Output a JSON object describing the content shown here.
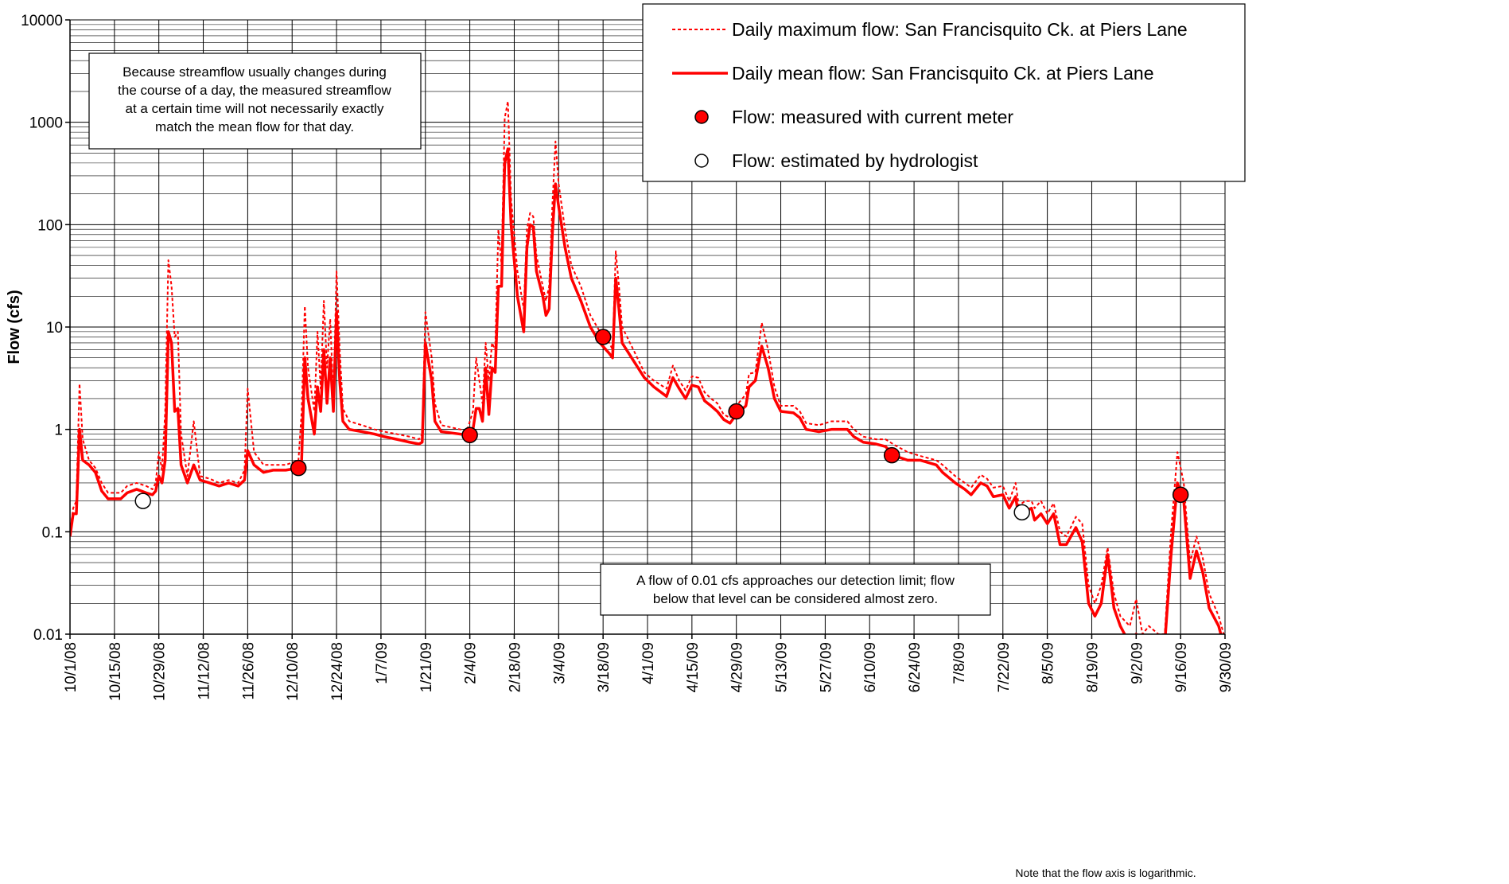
{
  "chart_data": {
    "type": "line",
    "ylabel": "Flow (cfs)",
    "log_y": true,
    "grid": true,
    "legend": "upper right",
    "ylim": [
      0.01,
      10000
    ],
    "yticks": [
      0.01,
      0.1,
      1,
      10,
      100,
      1000,
      10000
    ],
    "xlim": [
      "10/1/08",
      "9/30/09"
    ],
    "xticks": [
      "10/1/08",
      "10/15/08",
      "10/29/08",
      "11/12/08",
      "11/26/08",
      "12/10/08",
      "12/24/08",
      "1/7/09",
      "1/21/09",
      "2/4/09",
      "2/18/09",
      "3/4/09",
      "3/18/09",
      "4/1/09",
      "4/15/09",
      "4/29/09",
      "5/13/09",
      "5/27/09",
      "6/10/09",
      "6/24/09",
      "7/8/09",
      "7/22/09",
      "8/5/09",
      "8/19/09",
      "9/2/09",
      "9/16/09",
      "9/30/09"
    ],
    "x": [
      "10/1/08",
      "10/2/08",
      "10/3/08",
      "10/4/08",
      "10/5/08",
      "10/7/08",
      "10/9/08",
      "10/11/08",
      "10/13/08",
      "10/17/08",
      "10/19/08",
      "10/22/08",
      "10/25/08",
      "10/27/08",
      "10/28/08",
      "10/29/08",
      "10/30/08",
      "10/31/08",
      "11/1/08",
      "11/2/08",
      "11/3/08",
      "11/4/08",
      "11/5/08",
      "11/7/08",
      "11/9/08",
      "11/11/08",
      "11/14/08",
      "11/17/08",
      "11/20/08",
      "11/23/08",
      "11/25/08",
      "11/26/08",
      "11/28/08",
      "12/1/08",
      "12/4/08",
      "12/8/08",
      "12/12/08",
      "12/13/08",
      "12/14/08",
      "12/15/08",
      "12/17/08",
      "12/18/08",
      "12/19/08",
      "12/20/08",
      "12/21/08",
      "12/22/08",
      "12/23/08",
      "12/24/08",
      "12/25/08",
      "12/26/08",
      "12/28/08",
      "1/1/09",
      "1/5/09",
      "1/8/09",
      "1/12/09",
      "1/16/09",
      "1/19/09",
      "1/20/09",
      "1/21/09",
      "1/23/09",
      "1/24/09",
      "1/26/09",
      "2/1/09",
      "2/3/09",
      "2/5/09",
      "2/6/09",
      "2/7/09",
      "2/8/09",
      "2/9/09",
      "2/10/09",
      "2/11/09",
      "2/12/09",
      "2/13/09",
      "2/14/09",
      "2/15/09",
      "2/16/09",
      "2/17/09",
      "2/19/09",
      "2/21/09",
      "2/22/09",
      "2/23/09",
      "2/24/09",
      "2/25/09",
      "2/27/09",
      "2/28/09",
      "3/1/09",
      "3/2/09",
      "3/3/09",
      "3/4/09",
      "3/6/09",
      "3/8/09",
      "3/11/09",
      "3/14/09",
      "3/17/09",
      "3/20/09",
      "3/21/09",
      "3/22/09",
      "3/23/09",
      "3/24/09",
      "3/27/09",
      "3/31/09",
      "4/3/09",
      "4/7/09",
      "4/9/09",
      "4/11/09",
      "4/13/09",
      "4/15/09",
      "4/17/09",
      "4/19/09",
      "4/21/09",
      "4/23/09",
      "4/25/09",
      "4/27/09",
      "4/29/09",
      "5/2/09",
      "5/3/09",
      "5/5/09",
      "5/7/09",
      "5/9/09",
      "5/11/09",
      "5/13/09",
      "5/17/09",
      "5/19/09",
      "5/21/09",
      "5/25/09",
      "5/29/09",
      "6/3/09",
      "6/5/09",
      "6/8/09",
      "6/12/09",
      "6/15/09",
      "6/18/09",
      "6/22/09",
      "6/26/09",
      "7/1/09",
      "7/3/09",
      "7/7/09",
      "7/10/09",
      "7/12/09",
      "7/15/09",
      "7/17/09",
      "7/19/09",
      "7/22/09",
      "7/24/09",
      "7/26/09",
      "7/27/09",
      "7/29/09",
      "7/31/09",
      "8/1/09",
      "8/3/09",
      "8/5/09",
      "8/7/09",
      "8/9/09",
      "8/11/09",
      "8/14/09",
      "8/16/09",
      "8/18/09",
      "8/20/09",
      "8/22/09",
      "8/24/09",
      "8/26/09",
      "8/28/09",
      "8/31/09",
      "9/2/09",
      "9/4/09",
      "9/6/09",
      "9/9/09",
      "9/11/09",
      "9/13/09",
      "9/15/09",
      "9/17/09",
      "9/19/09",
      "9/21/09",
      "9/23/09",
      "9/25/09",
      "9/28/09",
      "9/30/09"
    ],
    "series": [
      {
        "name": "Daily maximum flow: San Francisquito Ck. at Piers Lane",
        "color": "#ff0000",
        "style": "dashed",
        "values": [
          0.1,
          0.17,
          0.2,
          2.8,
          0.8,
          0.5,
          0.42,
          0.3,
          0.24,
          0.24,
          0.28,
          0.3,
          0.28,
          0.26,
          0.3,
          0.6,
          0.4,
          1.5,
          45,
          25,
          8,
          9,
          0.9,
          0.35,
          1.2,
          0.35,
          0.33,
          0.3,
          0.32,
          0.3,
          0.4,
          2.5,
          0.6,
          0.45,
          0.45,
          0.45,
          0.5,
          1.5,
          16,
          4,
          1.5,
          9,
          2.5,
          18,
          4,
          12,
          2,
          35,
          6,
          1.6,
          1.2,
          1.1,
          1.0,
          0.95,
          0.9,
          0.85,
          0.8,
          0.9,
          14,
          5,
          1.8,
          1.1,
          1.0,
          0.95,
          1.5,
          5,
          3,
          1.8,
          7,
          3,
          7,
          6,
          90,
          40,
          1100,
          1600,
          180,
          35,
          15,
          90,
          130,
          120,
          50,
          25,
          18,
          25,
          150,
          650,
          250,
          90,
          40,
          25,
          13,
          9,
          7,
          6,
          55,
          25,
          10,
          6.5,
          3.6,
          3,
          2.5,
          4.2,
          3,
          2.4,
          3.3,
          3.2,
          2.3,
          2,
          1.8,
          1.4,
          1.3,
          1.7,
          2.2,
          3.5,
          3.6,
          11,
          6,
          2.6,
          1.7,
          1.7,
          1.5,
          1.15,
          1.1,
          1.2,
          1.2,
          1.0,
          0.85,
          0.8,
          0.8,
          0.7,
          0.6,
          0.55,
          0.5,
          0.45,
          0.35,
          0.3,
          0.27,
          0.36,
          0.33,
          0.27,
          0.28,
          0.2,
          0.3,
          0.18,
          0.2,
          0.2,
          0.17,
          0.2,
          0.15,
          0.19,
          0.1,
          0.09,
          0.14,
          0.12,
          0.03,
          0.02,
          0.03,
          0.07,
          0.025,
          0.015,
          0.012,
          0.022,
          0.01,
          0.012,
          0.01,
          0.01,
          0.1,
          0.6,
          0.3,
          0.05,
          0.09,
          0.055,
          0.025,
          0.015,
          0.009
        ]
      },
      {
        "name": "Daily mean flow: San Francisquito Ck. at Piers Lane",
        "color": "#ff0000",
        "style": "solid",
        "values": [
          0.09,
          0.15,
          0.15,
          1.0,
          0.5,
          0.45,
          0.38,
          0.25,
          0.21,
          0.21,
          0.24,
          0.26,
          0.24,
          0.23,
          0.25,
          0.35,
          0.3,
          0.5,
          9,
          7,
          1.5,
          1.6,
          0.45,
          0.3,
          0.45,
          0.32,
          0.3,
          0.28,
          0.3,
          0.28,
          0.32,
          0.62,
          0.45,
          0.38,
          0.4,
          0.4,
          0.42,
          0.5,
          5,
          2,
          0.9,
          2.6,
          1.5,
          6,
          1.8,
          5,
          1.5,
          14,
          3,
          1.2,
          1.0,
          0.95,
          0.9,
          0.85,
          0.8,
          0.75,
          0.72,
          0.75,
          7,
          3,
          1.2,
          0.95,
          0.9,
          0.88,
          1.0,
          1.6,
          1.6,
          1.2,
          4,
          1.4,
          4,
          3.6,
          25,
          25,
          400,
          550,
          100,
          20,
          9,
          60,
          100,
          95,
          35,
          20,
          13,
          15,
          80,
          250,
          150,
          60,
          30,
          18,
          10,
          7,
          5.5,
          5,
          30,
          15,
          7,
          5,
          3.2,
          2.6,
          2.1,
          3.2,
          2.5,
          2.0,
          2.7,
          2.6,
          1.9,
          1.7,
          1.5,
          1.25,
          1.15,
          1.4,
          1.7,
          2.6,
          3,
          6.5,
          4,
          2,
          1.5,
          1.45,
          1.3,
          1.0,
          0.95,
          1.0,
          1.0,
          0.85,
          0.75,
          0.72,
          0.68,
          0.55,
          0.5,
          0.5,
          0.45,
          0.38,
          0.3,
          0.26,
          0.23,
          0.3,
          0.28,
          0.22,
          0.23,
          0.17,
          0.22,
          0.14,
          0.16,
          0.17,
          0.13,
          0.15,
          0.12,
          0.15,
          0.075,
          0.075,
          0.11,
          0.08,
          0.02,
          0.015,
          0.02,
          0.06,
          0.018,
          0.012,
          0.008,
          0.01,
          0.008,
          0.009,
          0.008,
          0.008,
          0.06,
          0.3,
          0.2,
          0.035,
          0.065,
          0.04,
          0.018,
          0.012,
          0.007
        ]
      },
      {
        "name": "Flow: measured with current meter",
        "color": "#ff0000",
        "style": "marker",
        "x": [
          "12/12/08",
          "2/4/09",
          "3/18/09",
          "4/29/09",
          "6/17/09",
          "9/16/09"
        ],
        "values": [
          0.42,
          0.88,
          8,
          1.5,
          0.56,
          0.23
        ]
      },
      {
        "name": "Flow: estimated by hydrologist",
        "color": "#ffffff",
        "style": "marker",
        "x": [
          "10/24/08",
          "7/28/09"
        ],
        "values": [
          0.2,
          0.155
        ]
      }
    ],
    "annotations": [
      {
        "lines": [
          "Because streamflow usually changes during",
          "the course of a day, the measured streamflow",
          "at a certain time will not necessarily exactly",
          "match the mean flow for that day."
        ]
      },
      {
        "lines": [
          "A flow of 0.01 cfs approaches our detection limit; flow",
          "below that level can be considered almost zero."
        ]
      },
      {
        "lines": [
          "Note that the flow axis is logarithmic."
        ]
      }
    ]
  }
}
